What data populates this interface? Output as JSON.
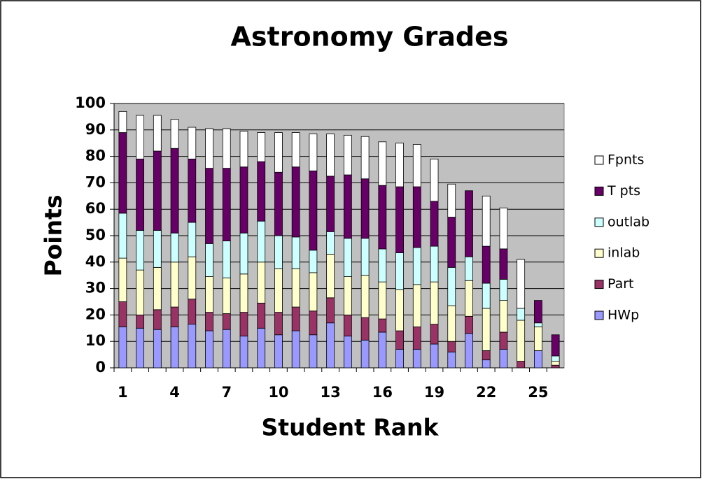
{
  "chart_data": {
    "type": "stacked-bar",
    "title": "Astronomy Grades",
    "x_label": "Student Rank",
    "y_label": "Points",
    "categories": [
      "1",
      null,
      null,
      "4",
      null,
      null,
      "7",
      null,
      null,
      "10",
      null,
      null,
      "13",
      null,
      null,
      "16",
      null,
      null,
      "19",
      null,
      null,
      "22",
      null,
      null,
      "25",
      null
    ],
    "series": [
      {
        "name": "HWp",
        "color": "#9999ff",
        "values": [
          15.5,
          15,
          14.5,
          15.5,
          16.5,
          14,
          14.5,
          12,
          15,
          12.5,
          14,
          12.5,
          17,
          12,
          10.5,
          13.5,
          7,
          7,
          9,
          6,
          13,
          3,
          7,
          0,
          6.5,
          0
        ]
      },
      {
        "name": "Part",
        "color": "#993366",
        "values": [
          9.5,
          5,
          7.5,
          7.5,
          9.5,
          7,
          6,
          9,
          9.5,
          8.5,
          9,
          9,
          9.5,
          8,
          8.5,
          5,
          7,
          8.5,
          7.5,
          4,
          6.5,
          3.5,
          6.5,
          2.5,
          0,
          1
        ]
      },
      {
        "name": "inlab",
        "color": "#ffffcc",
        "values": [
          16.5,
          17,
          16,
          17,
          16,
          13.5,
          13.5,
          14.5,
          15.5,
          16.5,
          14.5,
          14.5,
          16.5,
          14.5,
          16,
          14,
          15.5,
          16,
          16,
          13.5,
          13.5,
          16,
          12,
          15.5,
          9,
          1.5
        ]
      },
      {
        "name": "outlab",
        "color": "#ccffff",
        "values": [
          17,
          15,
          14,
          11,
          13,
          12.5,
          14,
          15.5,
          15.5,
          12.5,
          12,
          8.5,
          8.5,
          14.5,
          14,
          12.5,
          14,
          14,
          13.5,
          14.5,
          9,
          9.5,
          8,
          4.5,
          1.5,
          2
        ]
      },
      {
        "name": "T pts",
        "color": "#660066",
        "values": [
          30.5,
          27,
          30,
          32,
          24,
          28.5,
          27.5,
          25,
          22.5,
          24,
          26.5,
          30,
          21,
          24,
          22.5,
          24,
          25,
          23,
          17,
          19,
          25,
          14,
          11.5,
          0,
          8.5,
          8
        ]
      },
      {
        "name": "Fpnts",
        "color": "#ffffff",
        "values": [
          8,
          16.5,
          13.5,
          11,
          12,
          15,
          15,
          13.5,
          11,
          15,
          13,
          14,
          16,
          15,
          16,
          16.5,
          16.5,
          16,
          16,
          12.5,
          0,
          19,
          15.5,
          18.5,
          0,
          0
        ]
      }
    ],
    "ylim": [
      0,
      100
    ],
    "yticks": [
      0,
      10,
      20,
      30,
      40,
      50,
      60,
      70,
      80,
      90,
      100
    ],
    "grid": true,
    "plot_background": "#c0c0c0",
    "legend": "right"
  }
}
